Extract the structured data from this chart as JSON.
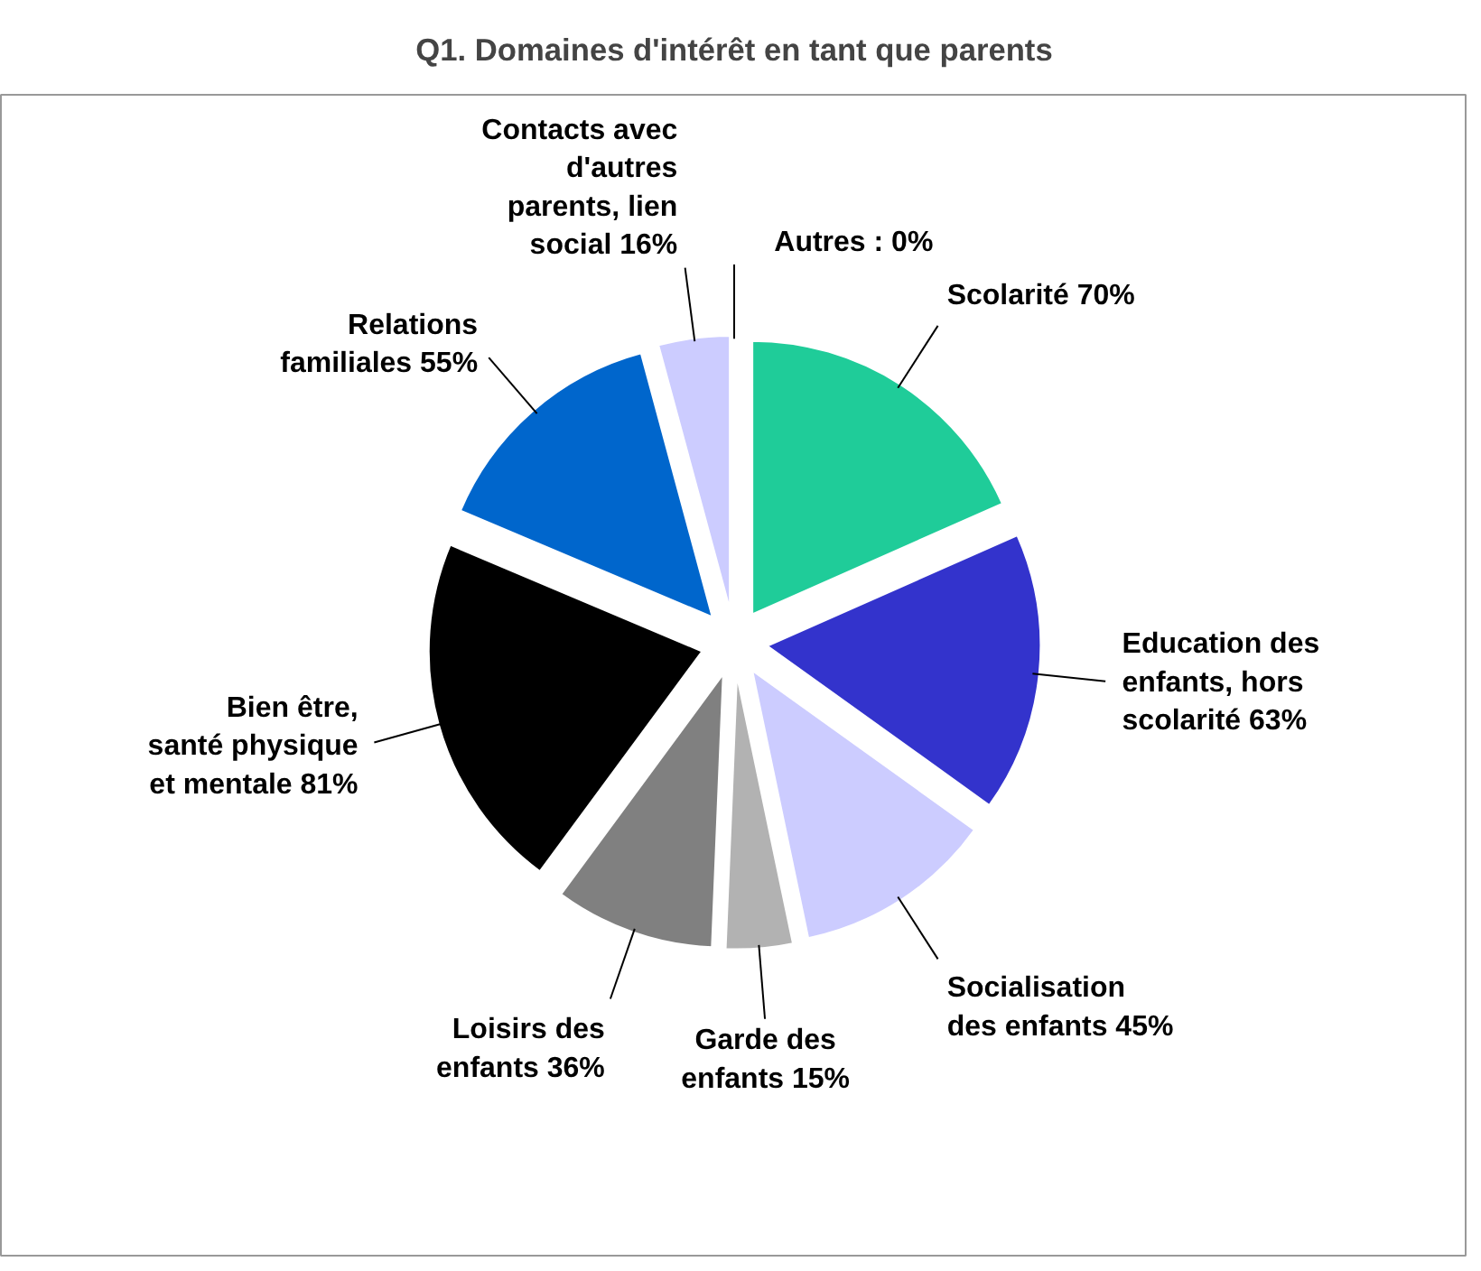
{
  "chart_data": {
    "type": "pie",
    "title": "Q1. Domaines d'intérêt en tant que parents",
    "categories": [
      "Scolarité",
      "Education des enfants, hors scolarité",
      "Socialisation des enfants",
      "Garde des enfants",
      "Loisirs des enfants",
      "Bien être, santé physique et mentale",
      "Relations familiales",
      "Contacts avec d'autres parents, lien social",
      "Autres"
    ],
    "values": [
      70,
      63,
      45,
      15,
      36,
      81,
      55,
      16,
      0
    ],
    "value_labels": [
      "70%",
      "63%",
      "45%",
      "15%",
      "36%",
      "81%",
      "55%",
      "16%",
      ": 0%"
    ],
    "colors": [
      "#1fcc99",
      "#3333cc",
      "#ccccff",
      "#b2b2b2",
      "#808080",
      "#000000",
      "#0066cc",
      "#ccccff",
      "#ccccff"
    ]
  }
}
